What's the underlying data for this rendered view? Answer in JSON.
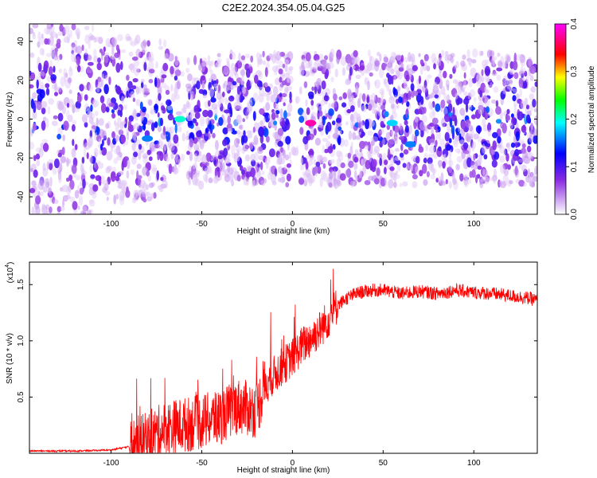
{
  "title": "C2E2.2024.354.05.04.G25",
  "chart_data": [
    {
      "type": "heatmap",
      "xlabel": "Height of straight line (km)",
      "ylabel": "Frequency (Hz)",
      "xlim": [
        -145,
        135
      ],
      "ylim": [
        -49,
        49
      ],
      "x_ticks": [
        -100,
        -50,
        0,
        50,
        100
      ],
      "y_ticks": [
        -40,
        -20,
        0,
        20,
        40
      ],
      "colorbar": {
        "label": "Normalized spectral amplitude",
        "range": [
          0.0,
          0.4
        ],
        "ticks": [
          0.0,
          0.1,
          0.2,
          0.3,
          0.4
        ],
        "colormap": [
          "#ffffff",
          "#d8b8f4",
          "#8a2be2",
          "#0000ff",
          "#00ffff",
          "#00ff00",
          "#ffff00",
          "#ff0000",
          "#ff00ff"
        ]
      },
      "features": [
        {
          "x": -62,
          "y": 0,
          "value": 0.2
        },
        {
          "x": 10,
          "y": -2,
          "value": 0.38
        },
        {
          "x": 55,
          "y": -2,
          "value": 0.18
        },
        {
          "x": 65,
          "y": -13,
          "value": 0.16
        },
        {
          "x": -80,
          "y": -10,
          "value": 0.16
        }
      ],
      "gaps_x": [
        -60,
        2
      ]
    },
    {
      "type": "line",
      "xlabel": "Height of straight line (km)",
      "ylabel": "SNR (10 * v/v)",
      "y_multiplier": "(x10",
      "y_multiplier_exp": "4",
      "y_multiplier_close": ")",
      "xlim": [
        -145,
        135
      ],
      "ylim": [
        0,
        1.7
      ],
      "x_ticks": [
        -100,
        -50,
        0,
        50,
        100
      ],
      "y_ticks": [
        0.5,
        1.0,
        1.5
      ],
      "color": "#ff0000",
      "x": [
        -145,
        -120,
        -100,
        -90,
        -80,
        -70,
        -60,
        -50,
        -40,
        -30,
        -20,
        -15,
        -10,
        -5,
        0,
        5,
        10,
        15,
        20,
        25,
        30,
        35,
        40,
        45,
        50,
        60,
        70,
        80,
        90,
        100,
        110,
        120,
        130,
        135
      ],
      "y": [
        0.02,
        0.02,
        0.03,
        0.06,
        0.12,
        0.22,
        0.25,
        0.28,
        0.32,
        0.42,
        0.38,
        0.6,
        0.7,
        0.78,
        0.85,
        0.95,
        1.02,
        1.1,
        1.2,
        1.32,
        1.38,
        1.42,
        1.44,
        1.45,
        1.45,
        1.42,
        1.44,
        1.42,
        1.45,
        1.43,
        1.42,
        1.4,
        1.38,
        1.36
      ]
    }
  ]
}
